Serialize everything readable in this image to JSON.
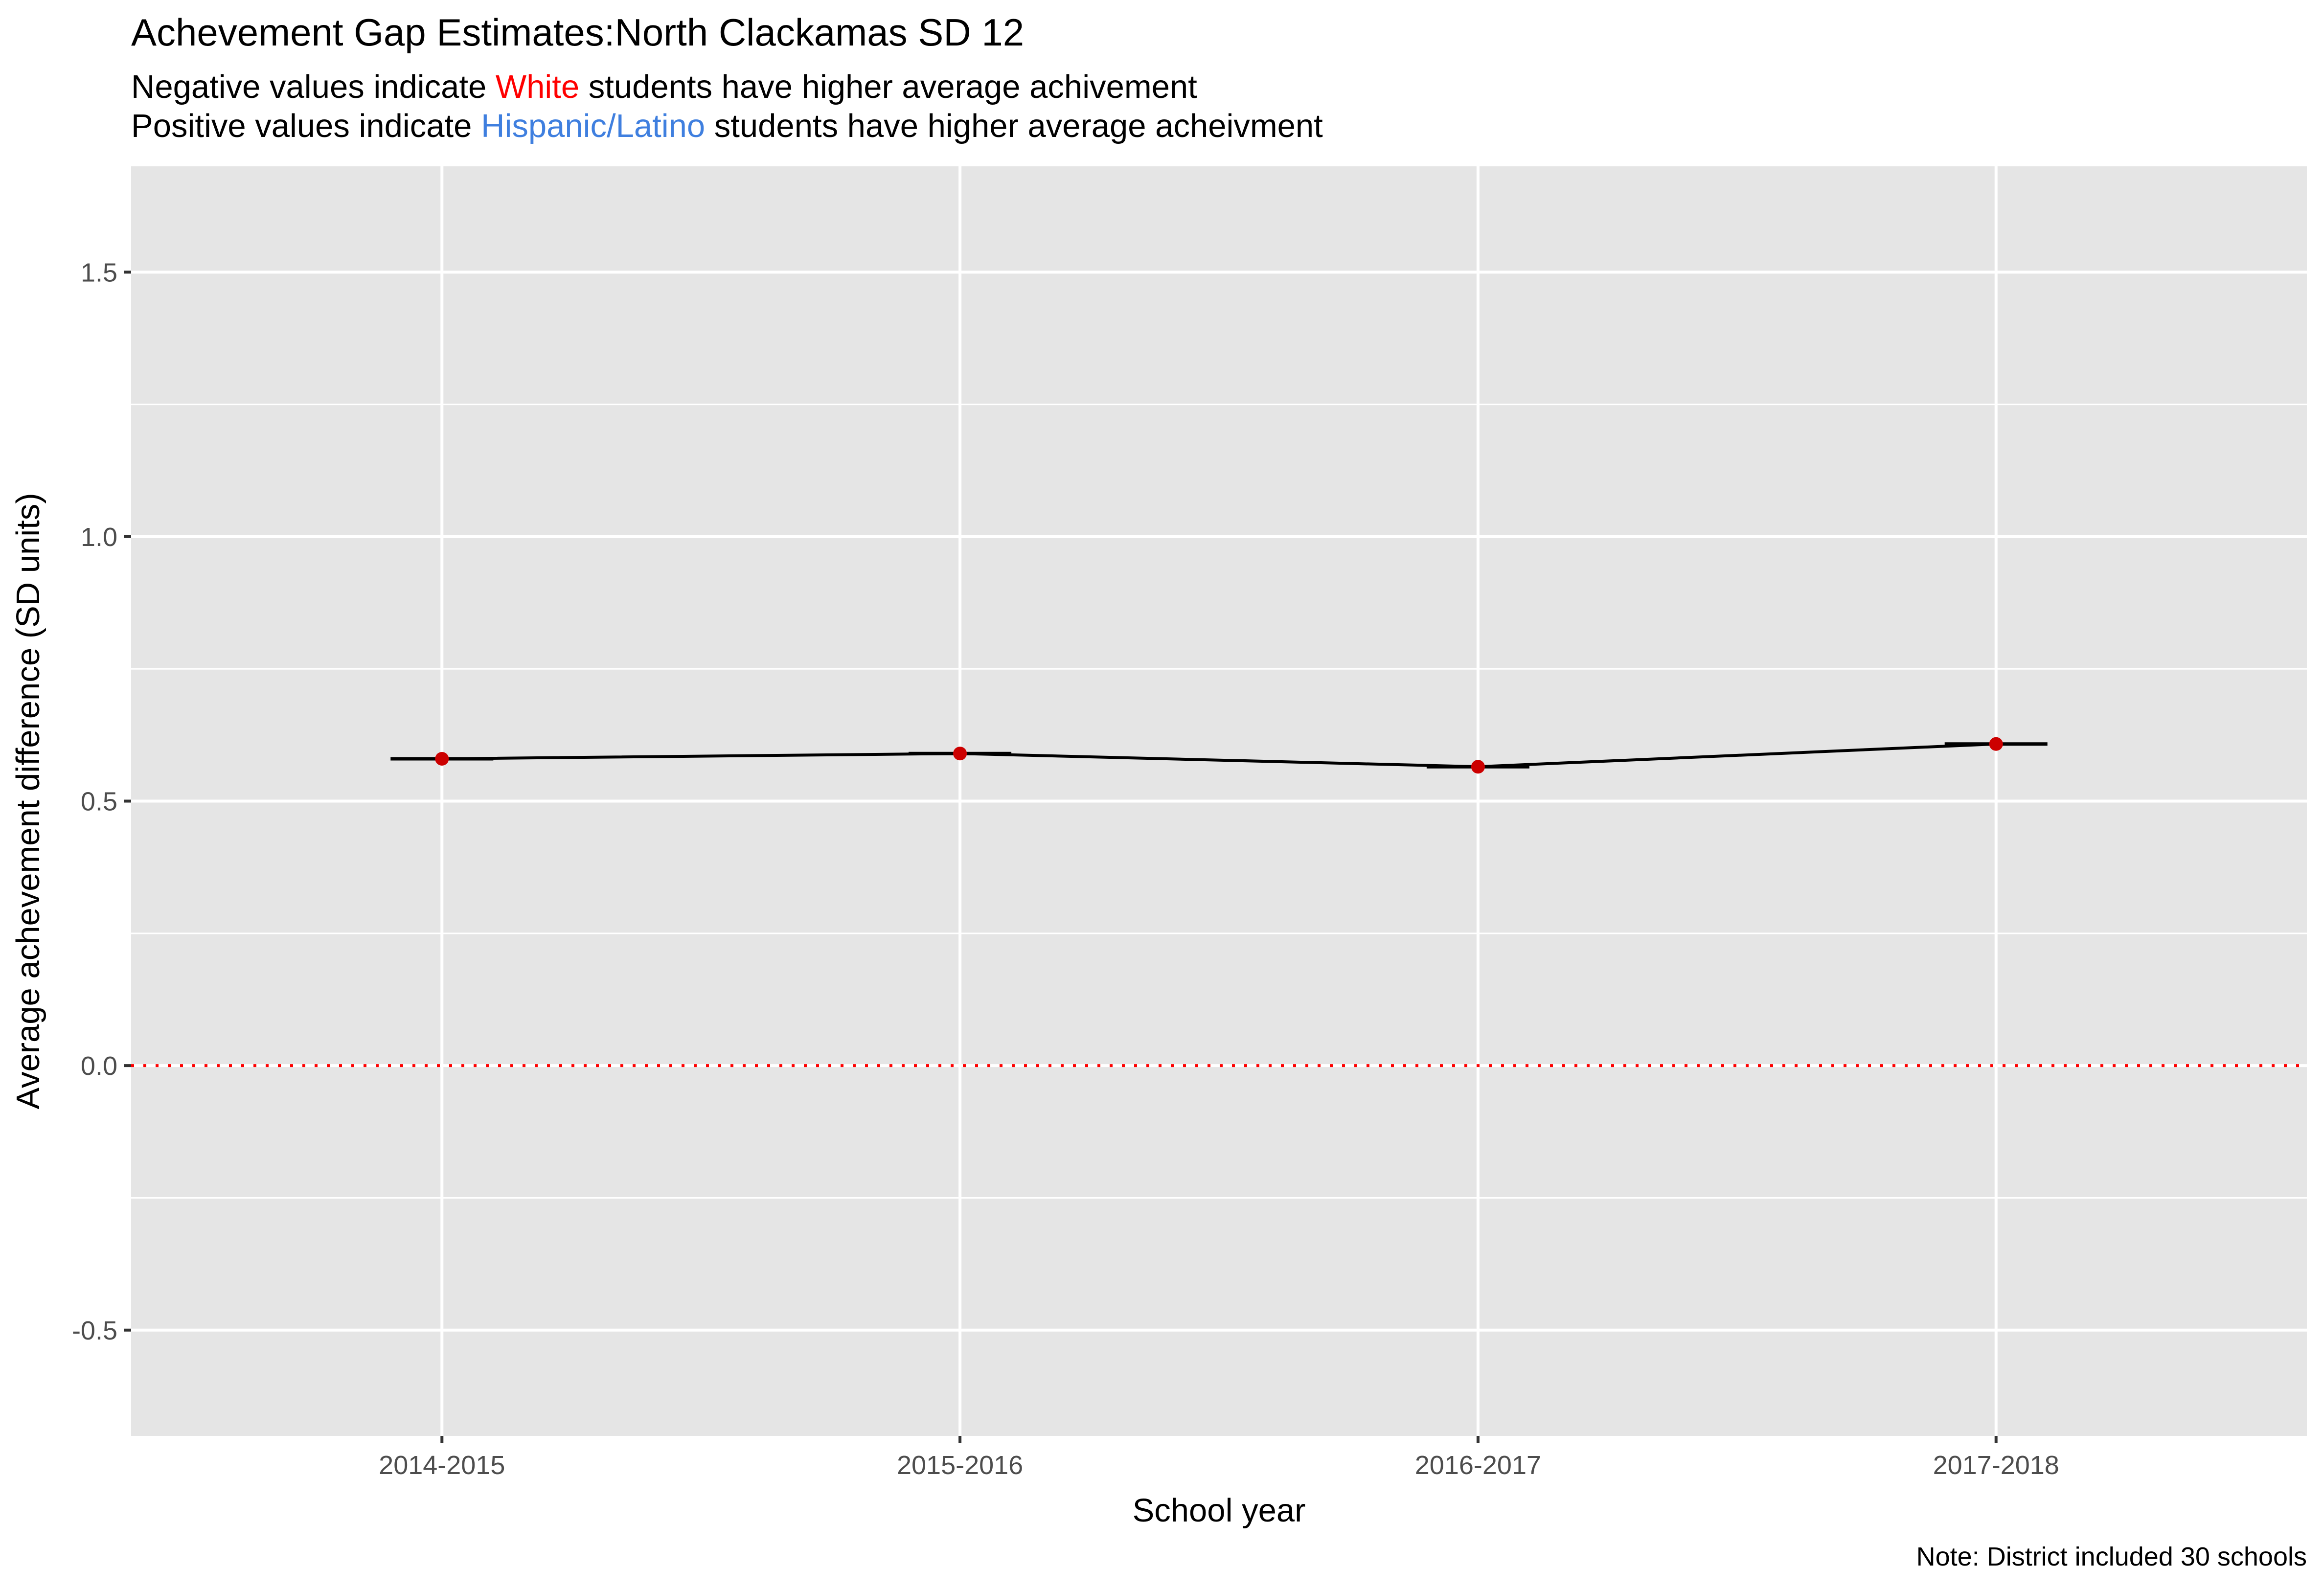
{
  "chart_data": {
    "type": "line",
    "title": "Achevement Gap Estimates:North Clackamas SD 12",
    "subtitle_lines": [
      [
        {
          "text": "Negative values indicate ",
          "color": "#000000"
        },
        {
          "text": "White",
          "color": "#FF0000"
        },
        {
          "text": " students have higher average achivement",
          "color": "#000000"
        }
      ],
      [
        {
          "text": "Positive values indicate ",
          "color": "#000000"
        },
        {
          "text": "Hispanic/Latino",
          "color": "#3F7FDF"
        },
        {
          "text": " students have higher average acheivment",
          "color": "#000000"
        }
      ]
    ],
    "xlabel": "School year",
    "ylabel": "Average achevement difference (SD units)",
    "caption": "Note: District included 30 schools",
    "categories": [
      "2014-2015",
      "2015-2016",
      "2016-2017",
      "2017-2018"
    ],
    "values": [
      0.58,
      0.59,
      0.565,
      0.608
    ],
    "ylim": [
      -0.7,
      1.7
    ],
    "yticks": [
      -0.5,
      0.0,
      0.5,
      1.0,
      1.5
    ],
    "ytick_labels": [
      "-0.5",
      "0.0",
      "0.5",
      "1.0",
      "1.5"
    ],
    "reference_line": {
      "y": 0,
      "style": "dotted",
      "color": "#FF0000"
    },
    "colors": {
      "panel_background": "#E5E5E5",
      "grid": "#FFFFFF",
      "line": "#000000",
      "points": "#CC0000",
      "axis_text": "#4D4D4D"
    },
    "grid": true,
    "legend": "none"
  }
}
